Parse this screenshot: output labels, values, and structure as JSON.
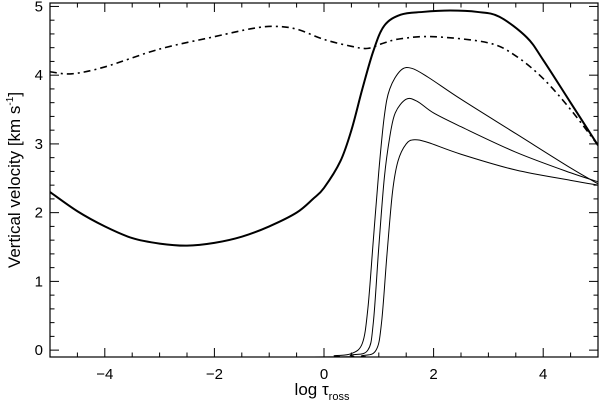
{
  "chart_data": {
    "type": "line",
    "xlabel": {
      "main": "log τ",
      "sub": "ross"
    },
    "ylabel": {
      "pre": "Vertical velocity [km s",
      "sup": "-1",
      "post": "]"
    },
    "xlim": [
      -5,
      5
    ],
    "ylim": [
      -0.1,
      5.05
    ],
    "xticks": {
      "major": [
        -4,
        -2,
        0,
        2,
        4
      ],
      "labels": [
        "−4",
        "−2",
        "0",
        "2",
        "4"
      ],
      "minor_step": 0.5
    },
    "yticks": {
      "major": [
        0,
        1,
        2,
        3,
        4,
        5
      ],
      "labels": [
        "0",
        "1",
        "2",
        "3",
        "4",
        "5"
      ],
      "minor_step": 0.2
    },
    "grid": false,
    "legend": "none",
    "series": [
      {
        "style": "dash-dot",
        "stroke_width": 1.6,
        "points": [
          [
            -5.0,
            4.05
          ],
          [
            -4.6,
            4.02
          ],
          [
            -4.0,
            4.12
          ],
          [
            -3.0,
            4.38
          ],
          [
            -2.0,
            4.56
          ],
          [
            -1.3,
            4.68
          ],
          [
            -0.9,
            4.71
          ],
          [
            -0.5,
            4.67
          ],
          [
            0.0,
            4.52
          ],
          [
            0.5,
            4.42
          ],
          [
            0.8,
            4.39
          ],
          [
            1.1,
            4.47
          ],
          [
            1.4,
            4.53
          ],
          [
            2.0,
            4.56
          ],
          [
            3.0,
            4.47
          ],
          [
            3.5,
            4.28
          ],
          [
            4.0,
            3.95
          ],
          [
            4.5,
            3.5
          ],
          [
            5.0,
            2.98
          ]
        ]
      },
      {
        "style": "solid",
        "stroke_width": 2.0,
        "points": [
          [
            -5.0,
            2.3
          ],
          [
            -4.5,
            2.02
          ],
          [
            -4.0,
            1.8
          ],
          [
            -3.5,
            1.63
          ],
          [
            -3.0,
            1.55
          ],
          [
            -2.5,
            1.52
          ],
          [
            -2.0,
            1.56
          ],
          [
            -1.5,
            1.65
          ],
          [
            -1.0,
            1.8
          ],
          [
            -0.5,
            2.0
          ],
          [
            -0.2,
            2.2
          ],
          [
            0.0,
            2.36
          ],
          [
            0.3,
            2.75
          ],
          [
            0.5,
            3.2
          ],
          [
            0.7,
            3.8
          ],
          [
            0.9,
            4.35
          ],
          [
            1.1,
            4.72
          ],
          [
            1.4,
            4.88
          ],
          [
            1.8,
            4.92
          ],
          [
            2.3,
            4.94
          ],
          [
            2.8,
            4.92
          ],
          [
            3.2,
            4.85
          ],
          [
            3.7,
            4.55
          ],
          [
            4.0,
            4.22
          ],
          [
            4.5,
            3.6
          ],
          [
            5.0,
            2.98
          ]
        ]
      },
      {
        "style": "solid",
        "stroke_width": 1.0,
        "points": [
          [
            -5.0,
            -0.1
          ],
          [
            -0.2,
            -0.1
          ],
          [
            0.2,
            -0.08
          ],
          [
            0.5,
            -0.05
          ],
          [
            0.7,
            0.1
          ],
          [
            0.8,
            0.6
          ],
          [
            0.9,
            1.6
          ],
          [
            1.0,
            2.6
          ],
          [
            1.1,
            3.4
          ],
          [
            1.2,
            3.8
          ],
          [
            1.4,
            4.07
          ],
          [
            1.6,
            4.1
          ],
          [
            1.9,
            3.97
          ],
          [
            2.5,
            3.65
          ],
          [
            3.5,
            3.15
          ],
          [
            4.5,
            2.65
          ],
          [
            5.0,
            2.42
          ]
        ]
      },
      {
        "style": "solid",
        "stroke_width": 1.0,
        "points": [
          [
            -5.0,
            -0.1
          ],
          [
            0.0,
            -0.1
          ],
          [
            0.5,
            -0.07
          ],
          [
            0.8,
            0.0
          ],
          [
            0.9,
            0.4
          ],
          [
            1.0,
            1.5
          ],
          [
            1.1,
            2.5
          ],
          [
            1.2,
            3.1
          ],
          [
            1.3,
            3.45
          ],
          [
            1.5,
            3.65
          ],
          [
            1.7,
            3.62
          ],
          [
            2.0,
            3.45
          ],
          [
            2.5,
            3.25
          ],
          [
            3.5,
            2.88
          ],
          [
            4.5,
            2.58
          ],
          [
            5.0,
            2.45
          ]
        ]
      },
      {
        "style": "solid",
        "stroke_width": 1.0,
        "points": [
          [
            -5.0,
            -0.1
          ],
          [
            0.2,
            -0.1
          ],
          [
            0.7,
            -0.08
          ],
          [
            0.95,
            0.0
          ],
          [
            1.05,
            0.4
          ],
          [
            1.15,
            1.4
          ],
          [
            1.25,
            2.3
          ],
          [
            1.35,
            2.75
          ],
          [
            1.5,
            3.0
          ],
          [
            1.65,
            3.06
          ],
          [
            1.9,
            3.02
          ],
          [
            2.5,
            2.85
          ],
          [
            3.5,
            2.62
          ],
          [
            4.5,
            2.47
          ],
          [
            5.0,
            2.4
          ]
        ]
      }
    ]
  }
}
